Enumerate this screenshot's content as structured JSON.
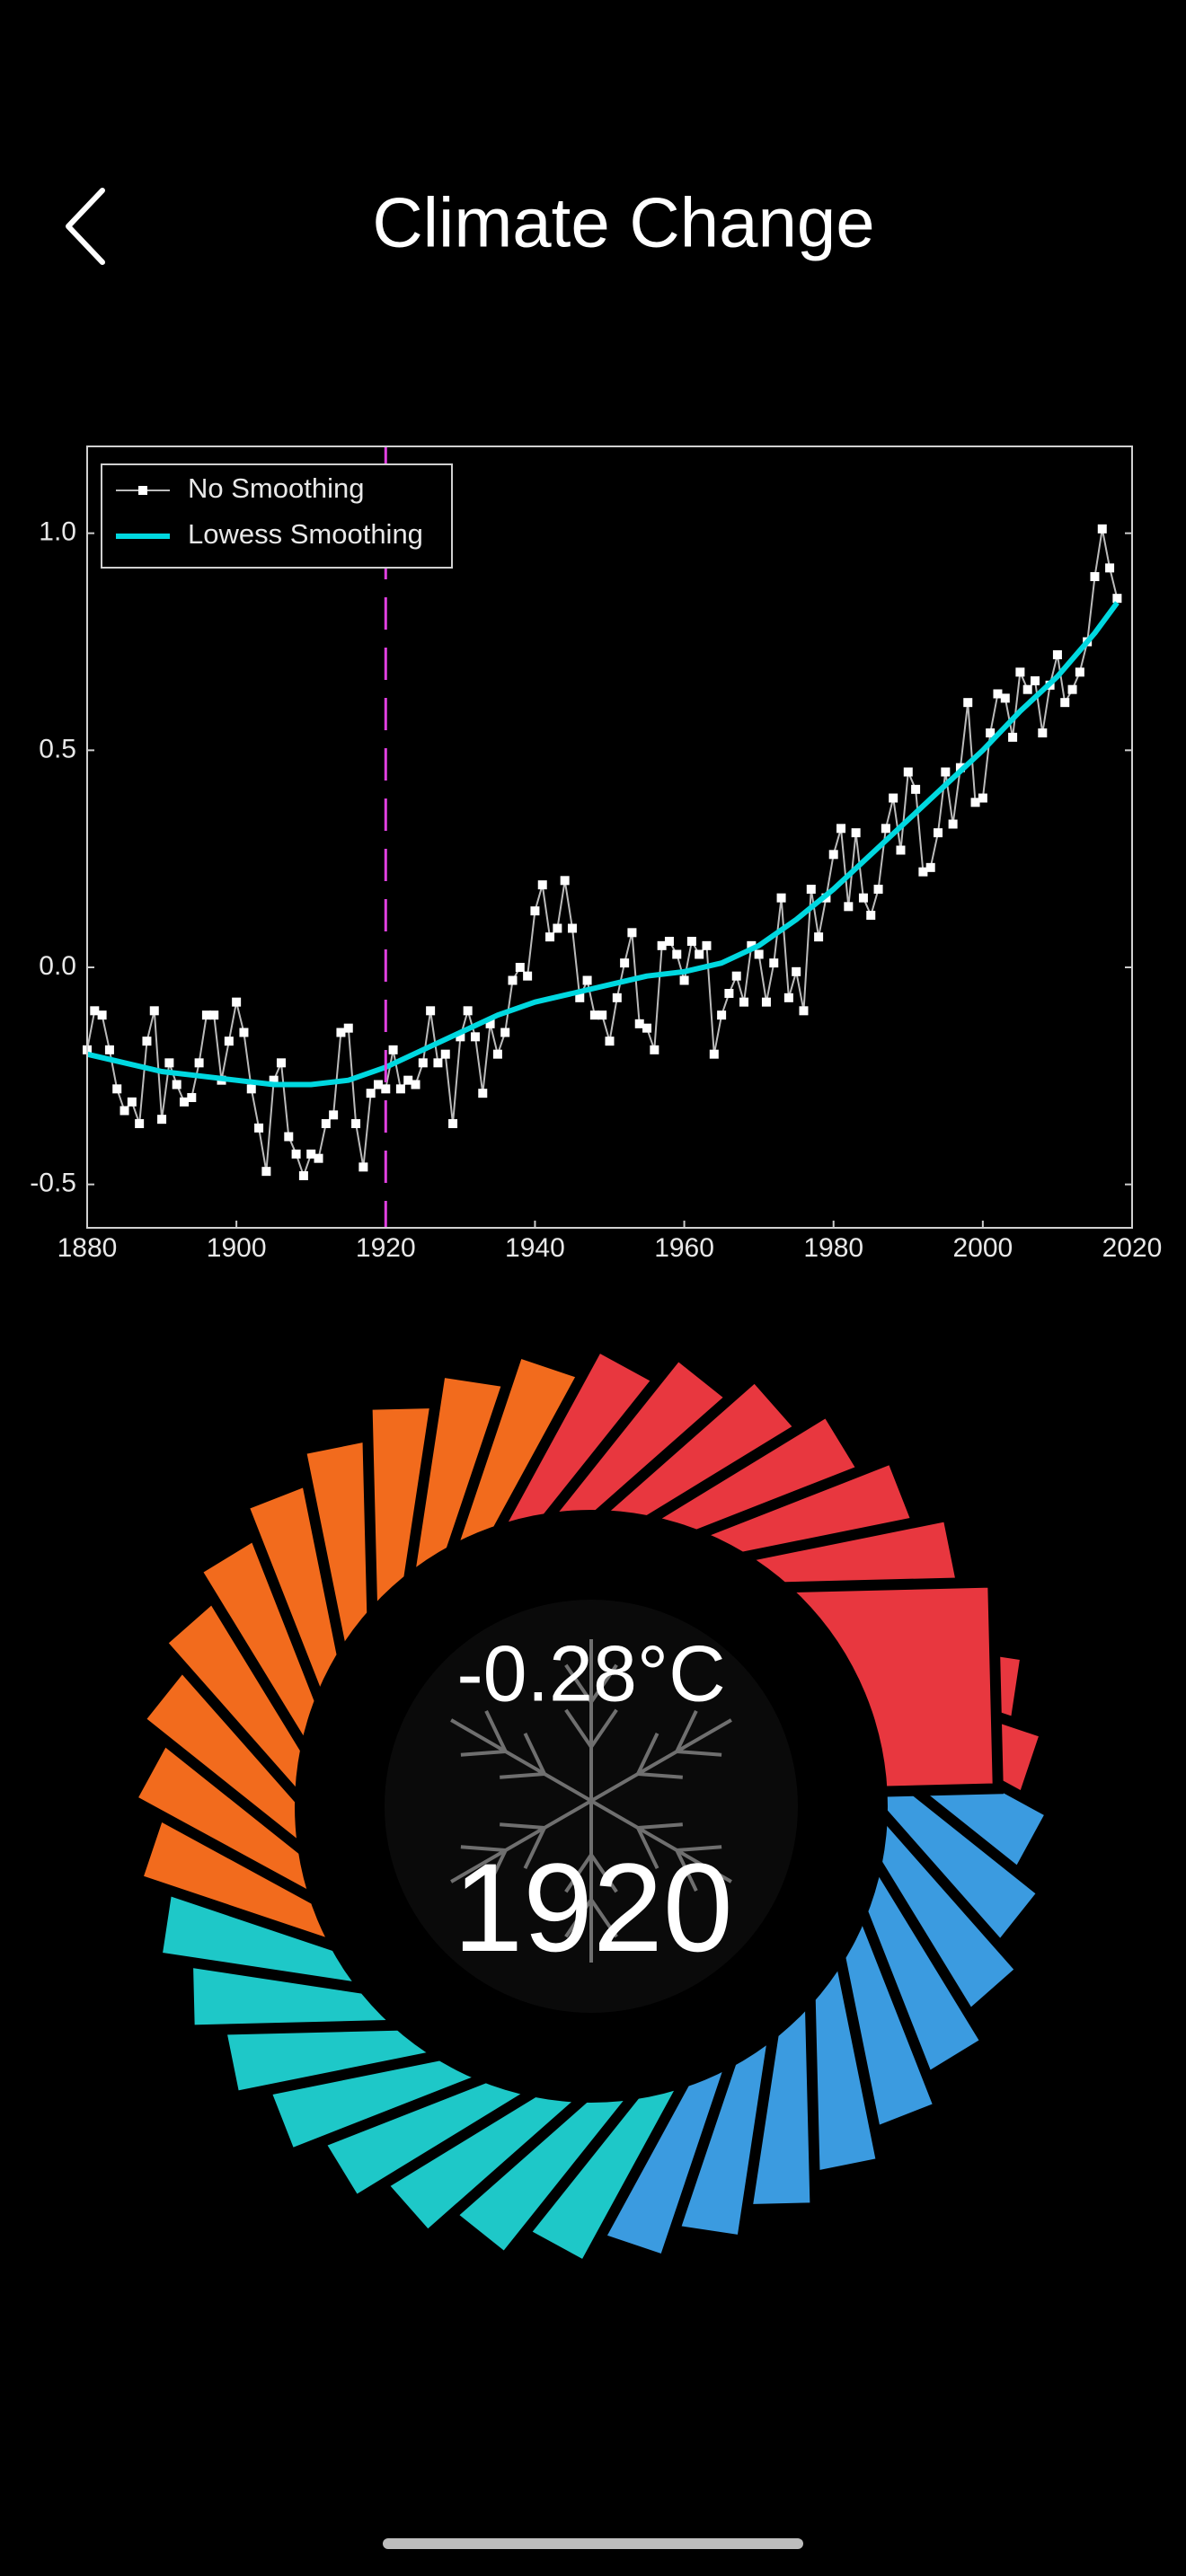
{
  "header": {
    "title": "Climate Change"
  },
  "chart_data": {
    "type": "line",
    "series": [
      {
        "name": "No Smoothing",
        "color": "#ffffff",
        "marker": "square",
        "x": [
          1880,
          1881,
          1882,
          1883,
          1884,
          1885,
          1886,
          1887,
          1888,
          1889,
          1890,
          1891,
          1892,
          1893,
          1894,
          1895,
          1896,
          1897,
          1898,
          1899,
          1900,
          1901,
          1902,
          1903,
          1904,
          1905,
          1906,
          1907,
          1908,
          1909,
          1910,
          1911,
          1912,
          1913,
          1914,
          1915,
          1916,
          1917,
          1918,
          1919,
          1920,
          1921,
          1922,
          1923,
          1924,
          1925,
          1926,
          1927,
          1928,
          1929,
          1930,
          1931,
          1932,
          1933,
          1934,
          1935,
          1936,
          1937,
          1938,
          1939,
          1940,
          1941,
          1942,
          1943,
          1944,
          1945,
          1946,
          1947,
          1948,
          1949,
          1950,
          1951,
          1952,
          1953,
          1954,
          1955,
          1956,
          1957,
          1958,
          1959,
          1960,
          1961,
          1962,
          1963,
          1964,
          1965,
          1966,
          1967,
          1968,
          1969,
          1970,
          1971,
          1972,
          1973,
          1974,
          1975,
          1976,
          1977,
          1978,
          1979,
          1980,
          1981,
          1982,
          1983,
          1984,
          1985,
          1986,
          1987,
          1988,
          1989,
          1990,
          1991,
          1992,
          1993,
          1994,
          1995,
          1996,
          1997,
          1998,
          1999,
          2000,
          2001,
          2002,
          2003,
          2004,
          2005,
          2006,
          2007,
          2008,
          2009,
          2010,
          2011,
          2012,
          2013,
          2014,
          2015,
          2016,
          2017,
          2018
        ],
        "values": [
          -0.19,
          -0.1,
          -0.11,
          -0.19,
          -0.28,
          -0.33,
          -0.31,
          -0.36,
          -0.17,
          -0.1,
          -0.35,
          -0.22,
          -0.27,
          -0.31,
          -0.3,
          -0.22,
          -0.11,
          -0.11,
          -0.26,
          -0.17,
          -0.08,
          -0.15,
          -0.28,
          -0.37,
          -0.47,
          -0.26,
          -0.22,
          -0.39,
          -0.43,
          -0.48,
          -0.43,
          -0.44,
          -0.36,
          -0.34,
          -0.15,
          -0.14,
          -0.36,
          -0.46,
          -0.29,
          -0.27,
          -0.28,
          -0.19,
          -0.28,
          -0.26,
          -0.27,
          -0.22,
          -0.1,
          -0.22,
          -0.2,
          -0.36,
          -0.16,
          -0.1,
          -0.16,
          -0.29,
          -0.13,
          -0.2,
          -0.15,
          -0.03,
          0.0,
          -0.02,
          0.13,
          0.19,
          0.07,
          0.09,
          0.2,
          0.09,
          -0.07,
          -0.03,
          -0.11,
          -0.11,
          -0.17,
          -0.07,
          0.01,
          0.08,
          -0.13,
          -0.14,
          -0.19,
          0.05,
          0.06,
          0.03,
          -0.03,
          0.06,
          0.03,
          0.05,
          -0.2,
          -0.11,
          -0.06,
          -0.02,
          -0.08,
          0.05,
          0.03,
          -0.08,
          0.01,
          0.16,
          -0.07,
          -0.01,
          -0.1,
          0.18,
          0.07,
          0.16,
          0.26,
          0.32,
          0.14,
          0.31,
          0.16,
          0.12,
          0.18,
          0.32,
          0.39,
          0.27,
          0.45,
          0.41,
          0.22,
          0.23,
          0.31,
          0.45,
          0.33,
          0.46,
          0.61,
          0.38,
          0.39,
          0.54,
          0.63,
          0.62,
          0.53,
          0.68,
          0.64,
          0.66,
          0.54,
          0.65,
          0.72,
          0.61,
          0.64,
          0.68,
          0.75,
          0.9,
          1.01,
          0.92,
          0.85
        ]
      },
      {
        "name": "Lowess Smoothing",
        "color": "#00d8e0",
        "x": [
          1880,
          1885,
          1890,
          1895,
          1900,
          1905,
          1910,
          1915,
          1920,
          1925,
          1930,
          1935,
          1940,
          1945,
          1950,
          1955,
          1960,
          1965,
          1970,
          1975,
          1980,
          1985,
          1990,
          1995,
          2000,
          2005,
          2010,
          2015,
          2018
        ],
        "values": [
          -0.2,
          -0.22,
          -0.24,
          -0.25,
          -0.26,
          -0.27,
          -0.27,
          -0.26,
          -0.23,
          -0.19,
          -0.15,
          -0.11,
          -0.08,
          -0.06,
          -0.04,
          -0.02,
          -0.01,
          0.01,
          0.05,
          0.11,
          0.18,
          0.26,
          0.34,
          0.42,
          0.5,
          0.59,
          0.67,
          0.77,
          0.84
        ]
      }
    ],
    "marker_x": 1920,
    "marker_color": "#e040e0",
    "xlim": [
      1880,
      2020
    ],
    "xticks": [
      1880,
      1900,
      1920,
      1940,
      1960,
      1980,
      2000,
      2020
    ],
    "ylim": [
      -0.6,
      1.2
    ],
    "yticks": [
      -0.5,
      {
        "value": 0,
        "label": "0.0"
      },
      0.5,
      {
        "value": 1,
        "label": "1.0"
      }
    ],
    "legend": "upper left"
  },
  "readout": {
    "temperature": "-0.28°C",
    "year": "1920"
  }
}
